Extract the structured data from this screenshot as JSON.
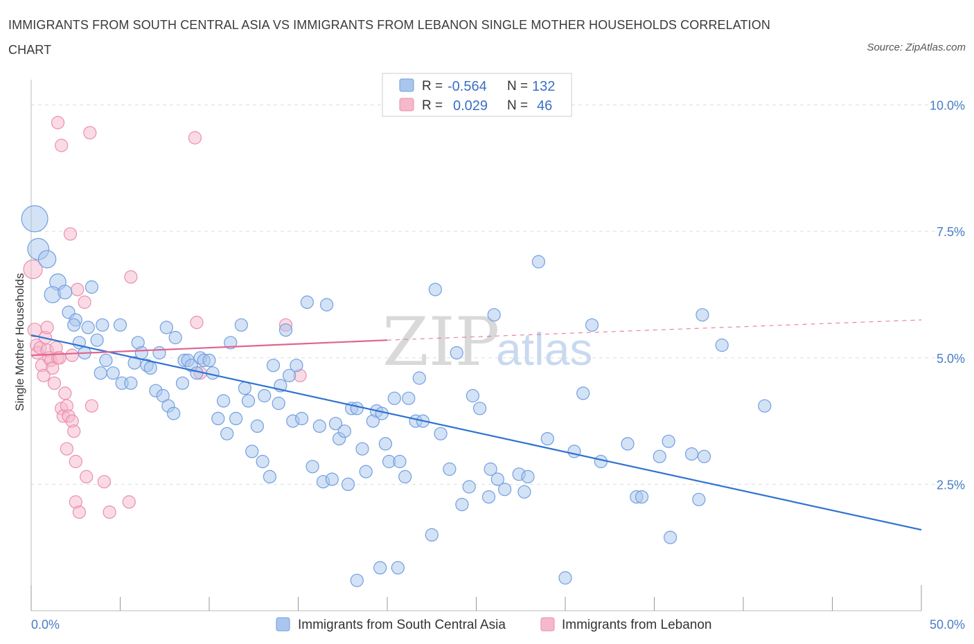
{
  "title": "IMMIGRANTS FROM SOUTH CENTRAL ASIA VS IMMIGRANTS FROM LEBANON SINGLE MOTHER HOUSEHOLDS CORRELATION CHART",
  "source": "Source: ZipAtlas.com",
  "watermark": {
    "zip": "ZIP",
    "atlas": "atlas"
  },
  "colors": {
    "blue_fill": "#a9c6ee",
    "blue_stroke": "#6f9fe0",
    "blue_line": "#2f72d0",
    "pink_fill": "#f6b8cb",
    "pink_stroke": "#ea8fab",
    "pink_line": "#e0648e",
    "grid": "#dddddd",
    "tick_text": "#4a7cc8"
  },
  "legend_box": {
    "row1": {
      "r_label": "R =",
      "r_value": "-0.564",
      "n_label": "N =",
      "n_value": "132"
    },
    "row2": {
      "r_label": "R =",
      "r_value": "0.029",
      "n_label": "N =",
      "n_value": "46"
    }
  },
  "chart_data": {
    "type": "scatter",
    "title": "IMMIGRANTS FROM SOUTH CENTRAL ASIA VS IMMIGRANTS FROM LEBANON SINGLE MOTHER HOUSEHOLDS CORRELATION CHART",
    "xlabel": "",
    "ylabel": "Single Mother Households",
    "xlim": [
      0,
      50
    ],
    "ylim": [
      0,
      10.5
    ],
    "x_tick_labels": [
      "0.0%",
      "50.0%"
    ],
    "y_ticks": [
      2.5,
      5.0,
      7.5,
      10.0
    ],
    "y_tick_labels": [
      "2.5%",
      "5.0%",
      "7.5%",
      "10.0%"
    ],
    "grid": true,
    "legend_position": "bottom",
    "series": [
      {
        "name": "Immigrants from South Central Asia",
        "color": "#a9c6ee",
        "r": -0.564,
        "n": 132,
        "trend": {
          "x": [
            0,
            50
          ],
          "y": [
            5.45,
            1.6
          ],
          "style": "solid"
        },
        "points": [
          [
            0.2,
            7.75,
            2.1
          ],
          [
            0.4,
            7.15,
            1.7
          ],
          [
            0.9,
            6.95,
            1.4
          ],
          [
            1.5,
            6.5,
            1.3
          ],
          [
            1.2,
            6.25,
            1.3
          ],
          [
            1.9,
            6.3,
            1.1
          ],
          [
            3.4,
            6.4,
            1.0
          ],
          [
            2.1,
            5.9,
            1.0
          ],
          [
            2.5,
            5.75,
            1.0
          ],
          [
            2.4,
            5.65,
            1.0
          ],
          [
            3.2,
            5.6,
            1.0
          ],
          [
            4.0,
            5.65,
            1.0
          ],
          [
            5.0,
            5.65,
            1.0
          ],
          [
            2.7,
            5.3,
            1.0
          ],
          [
            3.7,
            5.35,
            1.0
          ],
          [
            3.0,
            5.1,
            1.0
          ],
          [
            4.2,
            4.95,
            1.0
          ],
          [
            3.9,
            4.7,
            1.0
          ],
          [
            4.6,
            4.7,
            1.0
          ],
          [
            5.1,
            4.5,
            1.0
          ],
          [
            5.6,
            4.5,
            1.0
          ],
          [
            6.0,
            5.3,
            1.0
          ],
          [
            6.2,
            5.1,
            1.0
          ],
          [
            5.8,
            4.9,
            1.0
          ],
          [
            6.5,
            4.85,
            1.0
          ],
          [
            6.7,
            4.8,
            1.0
          ],
          [
            7.2,
            5.1,
            1.0
          ],
          [
            7.6,
            5.6,
            1.0
          ],
          [
            8.1,
            5.4,
            1.0
          ],
          [
            7.0,
            4.35,
            1.0
          ],
          [
            7.4,
            4.25,
            1.0
          ],
          [
            7.7,
            4.05,
            1.0
          ],
          [
            8.0,
            3.9,
            1.0
          ],
          [
            8.5,
            4.5,
            1.0
          ],
          [
            8.6,
            4.95,
            1.0
          ],
          [
            8.8,
            4.95,
            1.0
          ],
          [
            9.0,
            4.85,
            1.0
          ],
          [
            9.3,
            4.7,
            1.0
          ],
          [
            9.5,
            5.0,
            1.0
          ],
          [
            9.7,
            4.95,
            1.0
          ],
          [
            10.0,
            4.95,
            1.0
          ],
          [
            10.2,
            4.7,
            1.0
          ],
          [
            10.5,
            3.8,
            1.0
          ],
          [
            10.8,
            4.15,
            1.0
          ],
          [
            11.0,
            3.5,
            1.0
          ],
          [
            11.2,
            5.3,
            1.0
          ],
          [
            11.5,
            3.8,
            1.0
          ],
          [
            11.8,
            5.65,
            1.0
          ],
          [
            12.0,
            4.4,
            1.0
          ],
          [
            12.2,
            4.15,
            1.0
          ],
          [
            12.4,
            3.15,
            1.0
          ],
          [
            12.7,
            3.65,
            1.0
          ],
          [
            13.0,
            2.95,
            1.0
          ],
          [
            13.1,
            4.25,
            1.0
          ],
          [
            13.4,
            2.65,
            1.0
          ],
          [
            13.6,
            4.85,
            1.0
          ],
          [
            13.9,
            4.1,
            1.0
          ],
          [
            14.0,
            4.45,
            1.0
          ],
          [
            14.3,
            5.55,
            1.0
          ],
          [
            14.5,
            4.65,
            1.0
          ],
          [
            14.7,
            3.75,
            1.0
          ],
          [
            14.9,
            4.85,
            1.0
          ],
          [
            15.2,
            3.8,
            1.0
          ],
          [
            15.5,
            6.1,
            1.0
          ],
          [
            15.8,
            2.85,
            1.0
          ],
          [
            16.2,
            3.65,
            1.0
          ],
          [
            16.4,
            2.55,
            1.0
          ],
          [
            16.6,
            6.05,
            1.0
          ],
          [
            16.9,
            2.6,
            1.0
          ],
          [
            17.1,
            3.7,
            1.0
          ],
          [
            17.3,
            3.4,
            1.0
          ],
          [
            17.6,
            3.55,
            1.0
          ],
          [
            17.8,
            2.5,
            1.0
          ],
          [
            18.0,
            4.0,
            1.0
          ],
          [
            18.3,
            4.0,
            1.0
          ],
          [
            18.6,
            3.2,
            1.0
          ],
          [
            18.8,
            2.75,
            1.0
          ],
          [
            19.2,
            3.75,
            1.0
          ],
          [
            19.4,
            3.95,
            1.0
          ],
          [
            19.7,
            3.9,
            1.0
          ],
          [
            19.9,
            3.3,
            1.0
          ],
          [
            20.1,
            2.95,
            1.0
          ],
          [
            20.4,
            4.2,
            1.0
          ],
          [
            20.7,
            2.95,
            1.0
          ],
          [
            21.0,
            2.65,
            1.0
          ],
          [
            21.2,
            4.2,
            1.0
          ],
          [
            20.6,
            0.85,
            1.0
          ],
          [
            21.8,
            4.6,
            1.0
          ],
          [
            21.6,
            3.75,
            1.0
          ],
          [
            22.0,
            3.75,
            1.0
          ],
          [
            22.5,
            1.5,
            1.0
          ],
          [
            22.7,
            6.35,
            1.0
          ],
          [
            23.0,
            3.5,
            1.0
          ],
          [
            23.5,
            2.8,
            1.0
          ],
          [
            23.9,
            5.1,
            1.0
          ],
          [
            24.2,
            2.1,
            1.0
          ],
          [
            24.6,
            2.45,
            1.0
          ],
          [
            24.8,
            4.25,
            1.0
          ],
          [
            25.2,
            4.0,
            1.0
          ],
          [
            25.7,
            2.25,
            1.0
          ],
          [
            25.8,
            2.8,
            1.0
          ],
          [
            26.0,
            5.85,
            1.0
          ],
          [
            26.2,
            2.6,
            1.0
          ],
          [
            26.6,
            2.4,
            1.0
          ],
          [
            27.4,
            2.7,
            1.0
          ],
          [
            27.7,
            2.35,
            1.0
          ],
          [
            27.9,
            2.65,
            1.0
          ],
          [
            28.5,
            6.9,
            1.0
          ],
          [
            29.0,
            3.4,
            1.0
          ],
          [
            30.0,
            0.65,
            1.0
          ],
          [
            30.5,
            3.15,
            1.0
          ],
          [
            31.0,
            4.3,
            1.0
          ],
          [
            31.5,
            5.65,
            1.0
          ],
          [
            32.0,
            2.95,
            1.0
          ],
          [
            33.5,
            3.3,
            1.0
          ],
          [
            34.0,
            2.25,
            1.0
          ],
          [
            34.3,
            2.25,
            1.0
          ],
          [
            35.3,
            3.05,
            1.0
          ],
          [
            35.8,
            3.35,
            1.0
          ],
          [
            35.9,
            1.45,
            1.0
          ],
          [
            37.1,
            3.1,
            1.0
          ],
          [
            37.5,
            2.2,
            1.0
          ],
          [
            37.7,
            5.85,
            1.0
          ],
          [
            37.8,
            3.05,
            1.0
          ],
          [
            38.8,
            5.25,
            1.0
          ],
          [
            41.2,
            4.05,
            1.0
          ],
          [
            18.3,
            0.6,
            1.0
          ],
          [
            19.6,
            0.85,
            1.0
          ]
        ]
      },
      {
        "name": "Immigrants from Lebanon",
        "color": "#f6b8cb",
        "r": 0.029,
        "n": 46,
        "trend_solid": {
          "x": [
            0,
            20
          ],
          "y": [
            5.05,
            5.35
          ]
        },
        "trend_dashed": {
          "x": [
            20,
            50
          ],
          "y": [
            5.35,
            5.75
          ]
        },
        "points": [
          [
            0.1,
            6.75,
            1.5
          ],
          [
            0.2,
            5.55,
            1.1
          ],
          [
            0.3,
            5.25,
            1.0
          ],
          [
            0.35,
            5.1,
            1.0
          ],
          [
            0.5,
            5.2,
            1.0
          ],
          [
            0.6,
            4.85,
            1.0
          ],
          [
            0.7,
            4.65,
            1.0
          ],
          [
            0.8,
            5.4,
            1.0
          ],
          [
            0.9,
            5.15,
            1.0
          ],
          [
            1.0,
            5.0,
            1.0
          ],
          [
            1.1,
            4.95,
            1.0
          ],
          [
            1.2,
            4.8,
            1.0
          ],
          [
            1.3,
            4.5,
            1.0
          ],
          [
            0.9,
            5.6,
            1.0
          ],
          [
            1.4,
            5.2,
            1.0
          ],
          [
            1.5,
            5.0,
            1.0
          ],
          [
            1.6,
            5.0,
            1.0
          ],
          [
            1.7,
            4.0,
            1.0
          ],
          [
            1.8,
            3.85,
            1.0
          ],
          [
            1.9,
            4.3,
            1.0
          ],
          [
            2.0,
            4.05,
            1.0
          ],
          [
            2.1,
            3.85,
            1.0
          ],
          [
            2.3,
            3.75,
            1.0
          ],
          [
            2.4,
            3.55,
            1.0
          ],
          [
            2.5,
            2.95,
            1.0
          ],
          [
            1.5,
            9.65,
            1.0
          ],
          [
            1.7,
            9.2,
            1.0
          ],
          [
            2.0,
            3.2,
            1.0
          ],
          [
            2.2,
            7.45,
            1.0
          ],
          [
            2.3,
            5.05,
            1.0
          ],
          [
            2.6,
            6.35,
            1.0
          ],
          [
            2.5,
            2.15,
            1.0
          ],
          [
            2.7,
            1.95,
            1.0
          ],
          [
            3.0,
            6.1,
            1.0
          ],
          [
            3.1,
            2.65,
            1.0
          ],
          [
            3.3,
            9.45,
            1.0
          ],
          [
            3.4,
            4.05,
            1.0
          ],
          [
            4.1,
            2.55,
            1.0
          ],
          [
            4.4,
            1.95,
            1.0
          ],
          [
            5.5,
            2.15,
            1.0
          ],
          [
            5.6,
            6.6,
            1.0
          ],
          [
            9.2,
            9.35,
            1.0
          ],
          [
            9.3,
            5.7,
            1.0
          ],
          [
            9.5,
            4.7,
            1.0
          ],
          [
            14.3,
            5.65,
            1.0
          ],
          [
            15.1,
            4.65,
            1.0
          ]
        ]
      }
    ]
  }
}
